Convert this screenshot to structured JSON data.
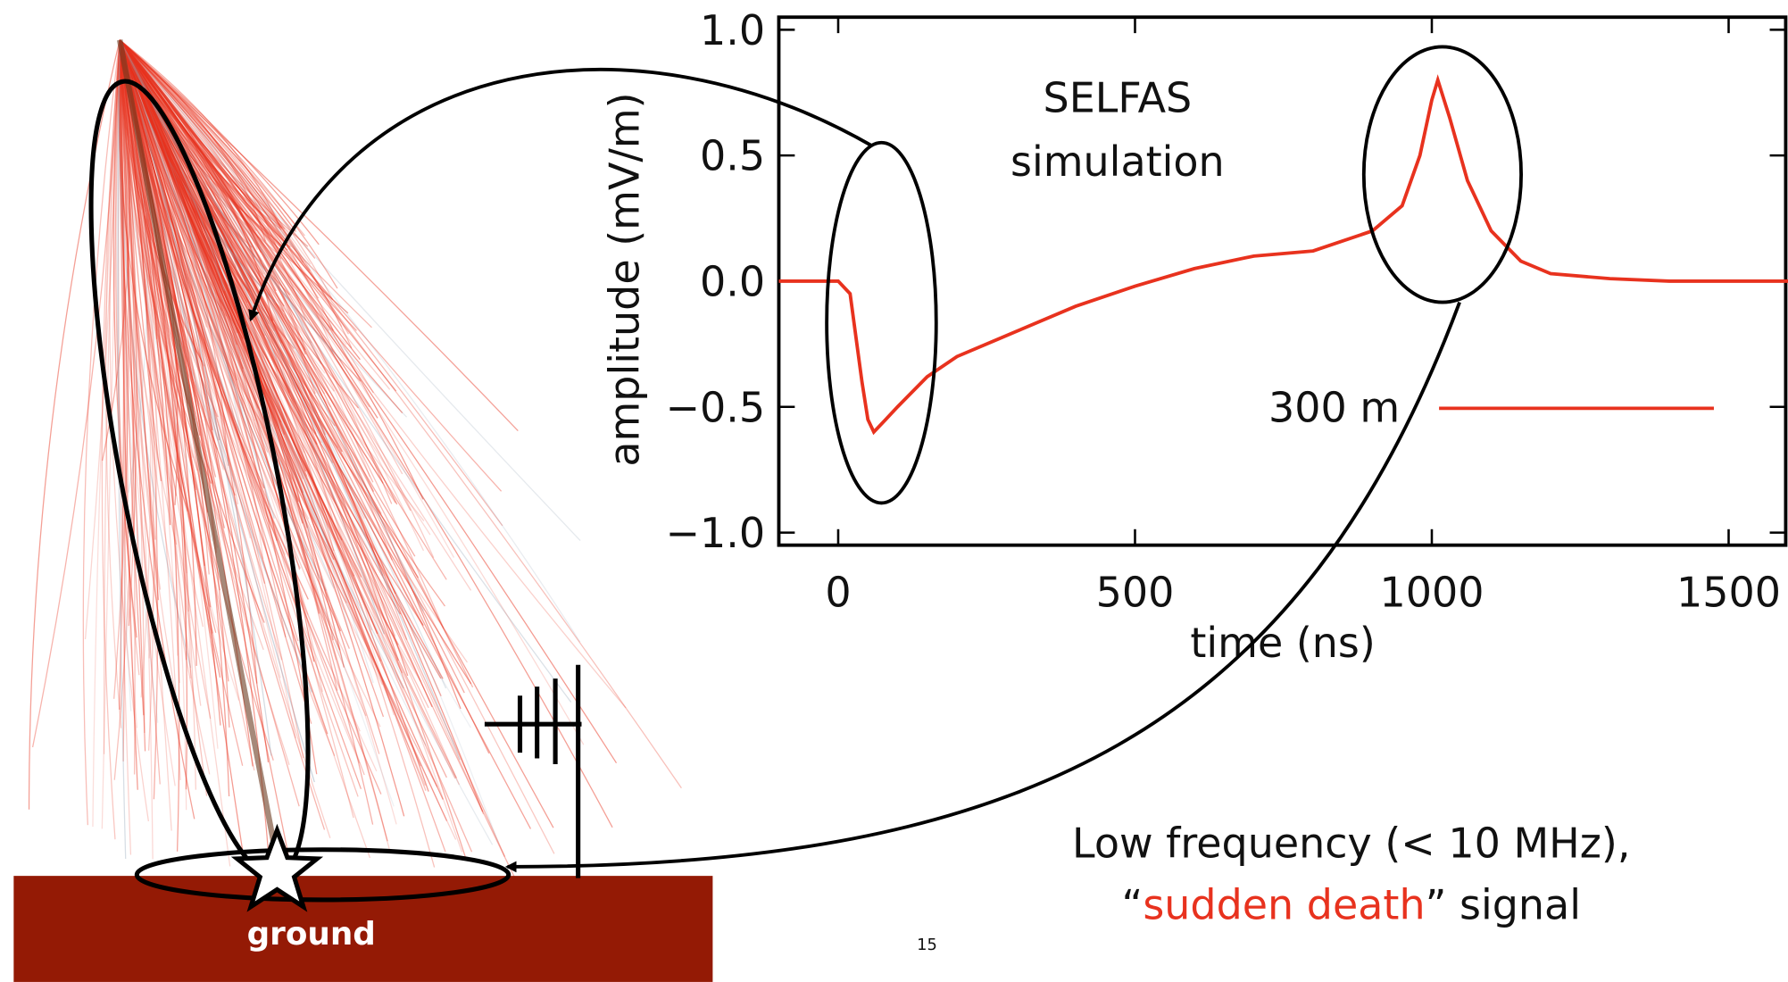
{
  "chart_data": {
    "type": "line",
    "annotation": [
      "SELFAS",
      "simulation"
    ],
    "xlabel": "time (ns)",
    "ylabel": "amplitude (mV/m)",
    "x": [
      -100,
      0,
      20,
      40,
      50,
      60,
      80,
      100,
      150,
      200,
      300,
      400,
      500,
      600,
      700,
      800,
      900,
      950,
      980,
      1000,
      1010,
      1030,
      1060,
      1100,
      1150,
      1200,
      1300,
      1400,
      1600
    ],
    "series": [
      {
        "name": "300 m",
        "color": "#e8321e",
        "values": [
          0,
          0,
          -0.05,
          -0.4,
          -0.55,
          -0.6,
          -0.55,
          -0.5,
          -0.38,
          -0.3,
          -0.2,
          -0.1,
          -0.02,
          0.05,
          0.1,
          0.12,
          0.2,
          0.3,
          0.5,
          0.72,
          0.8,
          0.65,
          0.4,
          0.2,
          0.08,
          0.03,
          0.01,
          0,
          0
        ]
      }
    ],
    "xlim": [
      -100,
      1600
    ],
    "ylim": [
      -1.05,
      1.05
    ],
    "xticks": [
      0,
      500,
      1000,
      1500
    ],
    "yticks": [
      {
        "value": 1,
        "label": "1.0"
      },
      {
        "value": 0.5,
        "label": "0.5"
      },
      {
        "value": 0,
        "label": "0.0"
      },
      {
        "value": -0.5,
        "label": "−0.5"
      },
      {
        "value": -1,
        "label": "−1.0"
      }
    ]
  },
  "slide": {
    "ground_label": "ground",
    "page_number": "15",
    "caption": {
      "line1": "Low frequency (< 10 MHz),",
      "open_quote": "“",
      "highlight": "sudden death",
      "rest": "” signal"
    }
  }
}
